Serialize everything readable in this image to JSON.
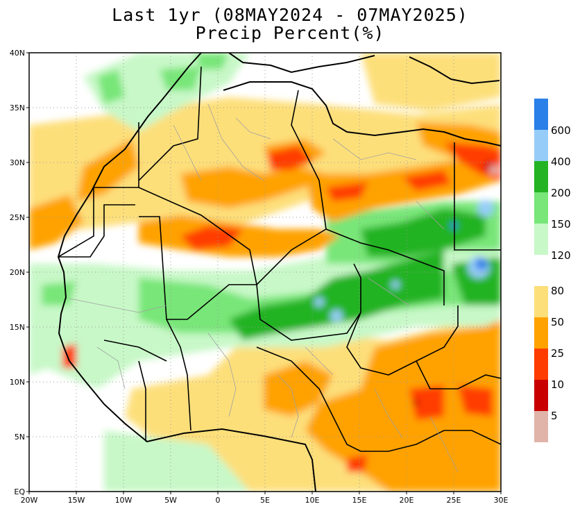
{
  "title": {
    "line1": "Last 1yr (08MAY2024 - 07MAY2025)",
    "line2": "Precip Percent(%)"
  },
  "map": {
    "lat_ticks": [
      {
        "value": 40,
        "label": "40N"
      },
      {
        "value": 35,
        "label": "35N"
      },
      {
        "value": 30,
        "label": "30N"
      },
      {
        "value": 25,
        "label": "25N"
      },
      {
        "value": 20,
        "label": "20N"
      },
      {
        "value": 15,
        "label": "15N"
      },
      {
        "value": 10,
        "label": "10N"
      },
      {
        "value": 5,
        "label": "5N"
      },
      {
        "value": 0,
        "label": "EQ"
      }
    ],
    "lon_ticks": [
      {
        "value": -20,
        "label": "20W"
      },
      {
        "value": -15,
        "label": "15W"
      },
      {
        "value": -10,
        "label": "10W"
      },
      {
        "value": -5,
        "label": "5W"
      },
      {
        "value": 0,
        "label": "0"
      },
      {
        "value": 5,
        "label": "5E"
      },
      {
        "value": 10,
        "label": "10E"
      },
      {
        "value": 15,
        "label": "15E"
      },
      {
        "value": 20,
        "label": "20E"
      },
      {
        "value": 25,
        "label": "25E"
      },
      {
        "value": 30,
        "label": "30E"
      }
    ],
    "lat_range": [
      0,
      40
    ],
    "lon_range": [
      -20,
      30
    ],
    "colors": {
      "ocean": "#ffffff",
      "land_bg": "#ffffff",
      "coast": "#000000",
      "border": "#000000",
      "admin": "#a0a0a0",
      "grid": "#9a9a9a"
    }
  },
  "legend": {
    "wet": [
      {
        "label": "600",
        "color": "#2a7fe8"
      },
      {
        "label": "400",
        "color": "#96cdf8"
      },
      {
        "label": "200",
        "color": "#23b323"
      },
      {
        "label": "150",
        "color": "#78e678"
      },
      {
        "label": "120",
        "color": "#c8f8c8"
      }
    ],
    "dry": [
      {
        "label": "80",
        "color": "#fddf7a"
      },
      {
        "label": "50",
        "color": "#ffa200"
      },
      {
        "label": "25",
        "color": "#ff3c00"
      },
      {
        "label": "10",
        "color": "#c80000"
      },
      {
        "label": "5",
        "color": "#e0b4a8"
      }
    ]
  }
}
